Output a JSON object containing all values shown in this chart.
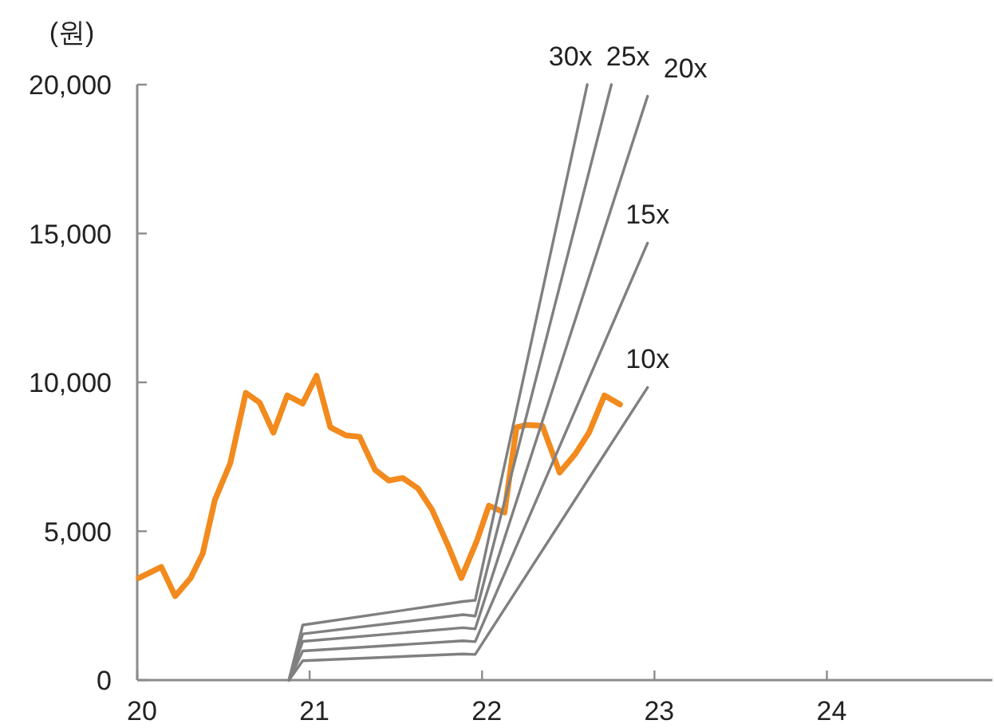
{
  "chart_data": {
    "type": "line",
    "ylabel": "(원)",
    "xlim": [
      20,
      24.96
    ],
    "xticks": [
      20,
      21,
      22,
      23,
      24
    ],
    "ylim": [
      0,
      20000
    ],
    "yticks": [
      0,
      {
        "value": 5000,
        "label": "5,000"
      },
      {
        "value": 10000,
        "label": "10,000"
      },
      {
        "value": 15000,
        "label": "15,000"
      },
      {
        "value": 20000,
        "label": "20,000"
      }
    ],
    "grid": false,
    "marker": "none",
    "line_style": "solid",
    "series": [
      {
        "color": "#f28a1e",
        "x": [
          20.01,
          20.14,
          20.22,
          20.31,
          20.38,
          20.45,
          20.54,
          20.63,
          20.71,
          20.79,
          20.87,
          20.96,
          21.04,
          21.12,
          21.21,
          21.29,
          21.38,
          21.46,
          21.54,
          21.63,
          21.71,
          21.8,
          21.88,
          21.97,
          22.04,
          22.13,
          22.2,
          22.26,
          22.35,
          22.45,
          22.54,
          22.62,
          22.71,
          22.8
        ],
        "values": [
          3430,
          3800,
          2820,
          3430,
          4250,
          6040,
          7290,
          9650,
          9320,
          8310,
          9560,
          9290,
          10220,
          8490,
          8220,
          8170,
          7060,
          6700,
          6790,
          6430,
          5720,
          4560,
          3430,
          4680,
          5860,
          5630,
          8490,
          8570,
          8540,
          6970,
          7590,
          8310,
          9560,
          9260
        ]
      },
      {
        "name": "30x",
        "color": "#808080",
        "x": [
          20.88,
          20.96,
          21.89,
          21.96,
          22.61
        ],
        "values": [
          0,
          1850,
          2640,
          2680,
          20000
        ]
      },
      {
        "name": "25x",
        "color": "#808080",
        "x": [
          20.88,
          20.96,
          21.89,
          21.96,
          22.75
        ],
        "values": [
          0,
          1550,
          2200,
          2150,
          20000
        ]
      },
      {
        "name": "20x",
        "color": "#808080",
        "x": [
          20.88,
          20.96,
          21.89,
          21.96,
          22.96
        ],
        "values": [
          0,
          1300,
          1760,
          1720,
          19610
        ]
      },
      {
        "name": "15x",
        "color": "#808080",
        "x": [
          20.88,
          20.96,
          21.89,
          21.96,
          22.96
        ],
        "values": [
          0,
          980,
          1320,
          1290,
          14680
        ]
      },
      {
        "name": "10x",
        "color": "#808080",
        "x": [
          20.88,
          20.96,
          21.89,
          21.96,
          22.96
        ],
        "values": [
          0,
          650,
          880,
          860,
          9830
        ]
      }
    ]
  }
}
